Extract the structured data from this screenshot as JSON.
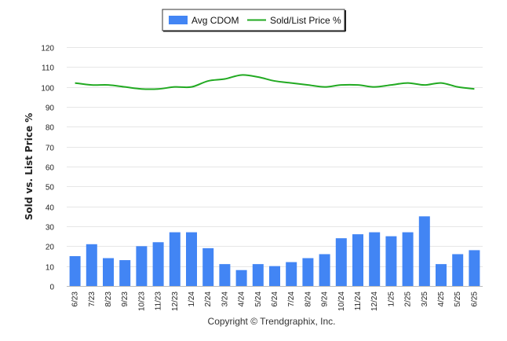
{
  "chart_data": {
    "type": "bar",
    "categories": [
      "6/23",
      "7/23",
      "8/23",
      "9/23",
      "10/23",
      "11/23",
      "12/23",
      "1/24",
      "2/24",
      "3/24",
      "4/24",
      "5/24",
      "6/24",
      "7/24",
      "8/24",
      "9/24",
      "10/24",
      "11/24",
      "12/24",
      "1/25",
      "2/25",
      "3/25",
      "4/25",
      "5/25",
      "6/25"
    ],
    "series": [
      {
        "name": "Avg CDOM",
        "type": "bar",
        "color": "#4285f4",
        "values": [
          15,
          21,
          14,
          13,
          20,
          22,
          27,
          27,
          19,
          11,
          8,
          11,
          10,
          12,
          14,
          16,
          24,
          26,
          27,
          25,
          27,
          35,
          11,
          16,
          18
        ]
      },
      {
        "name": "Sold/List Price %",
        "type": "line",
        "color": "#22aa22",
        "values": [
          102,
          101,
          101,
          100,
          99,
          99,
          100,
          100,
          103,
          104,
          106,
          105,
          103,
          102,
          101,
          100,
          101,
          101,
          100,
          101,
          102,
          101,
          102,
          100,
          99
        ]
      }
    ],
    "title": "",
    "xlabel": "",
    "ylabel": "Sold vs. List Price %",
    "ylim": [
      0,
      120
    ],
    "yticks": [
      "0",
      "10",
      "20",
      "30",
      "40",
      "50",
      "60",
      "70",
      "80",
      "90",
      "100",
      "110",
      "120"
    ],
    "grid": true,
    "legend_position": "top-center"
  },
  "footer": "Copyright © Trendgraphix, Inc."
}
